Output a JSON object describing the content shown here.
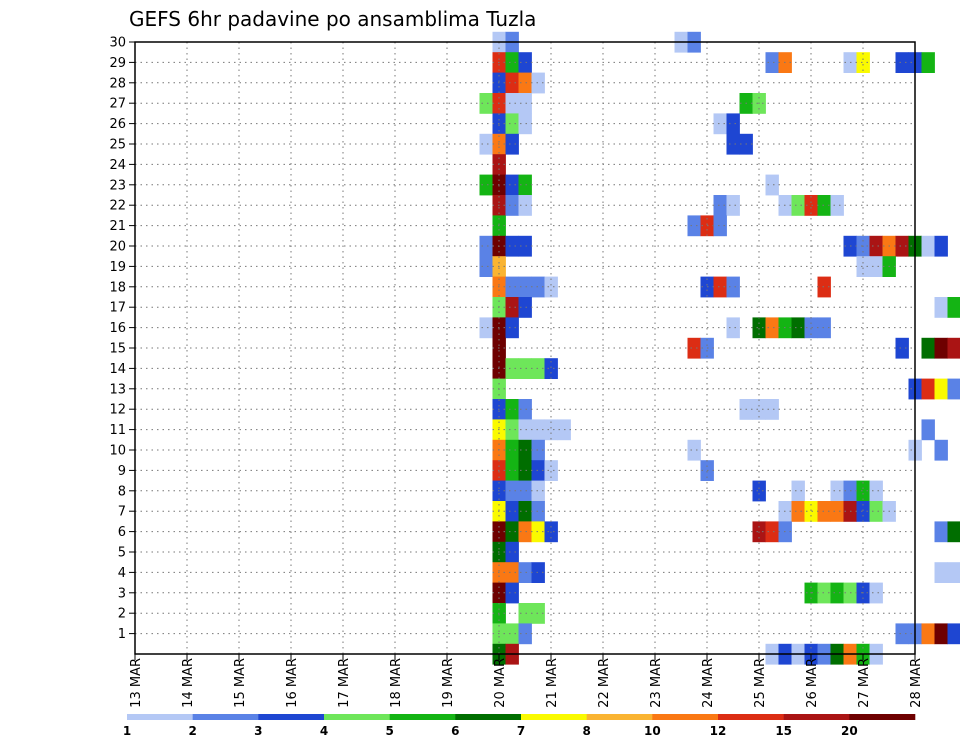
{
  "chart_data": {
    "type": "heatmap",
    "title": "GEFS 6hr padavine po ansamblima Tuzla",
    "xlabel": "",
    "ylabel": "",
    "x_tick_labels": [
      "13 MAR",
      "14 MAR",
      "15 MAR",
      "16 MAR",
      "17 MAR",
      "18 MAR",
      "19 MAR",
      "20 MAR",
      "21 MAR",
      "22 MAR",
      "23 MAR",
      "24 MAR",
      "25 MAR",
      "26 MAR",
      "27 MAR",
      "28 MAR"
    ],
    "y_tick_labels": [
      "1",
      "2",
      "3",
      "4",
      "5",
      "6",
      "7",
      "8",
      "9",
      "10",
      "11",
      "12",
      "13",
      "14",
      "15",
      "16",
      "17",
      "18",
      "19",
      "20",
      "21",
      "22",
      "23",
      "24",
      "25",
      "26",
      "27",
      "28",
      "29",
      "30"
    ],
    "x_range_steps": [
      0,
      60
    ],
    "y_range": [
      0,
      30
    ],
    "grid": true,
    "colorbar": {
      "labels": [
        "1",
        "2",
        "3",
        "4",
        "5",
        "6",
        "7",
        "8",
        "10",
        "12",
        "15",
        "20"
      ],
      "colors": [
        "#b4c8f5",
        "#5a82e6",
        "#1e46d2",
        "#6ee65a",
        "#14b414",
        "#006e00",
        "#fafa00",
        "#fab432",
        "#fa7814",
        "#dc2d14",
        "#aa1414",
        "#6e0000"
      ]
    },
    "note_units": "x = 6-hour forecast step index (0 = 13 MAR 00 UTC), y = ensemble member (0 = control), c = color bin index",
    "cells": [
      [
        28,
        30,
        0
      ],
      [
        29,
        30,
        1
      ],
      [
        42,
        30,
        0
      ],
      [
        43,
        30,
        1
      ],
      [
        28,
        29,
        9
      ],
      [
        29,
        29,
        4
      ],
      [
        30,
        29,
        2
      ],
      [
        49,
        29,
        1
      ],
      [
        50,
        29,
        8
      ],
      [
        55,
        29,
        0
      ],
      [
        56,
        29,
        6
      ],
      [
        59,
        29,
        2
      ],
      [
        60,
        29,
        2
      ],
      [
        61,
        29,
        4
      ],
      [
        68,
        29,
        0
      ],
      [
        70,
        29,
        0
      ],
      [
        28,
        28,
        2
      ],
      [
        29,
        28,
        9
      ],
      [
        30,
        28,
        8
      ],
      [
        31,
        28,
        0
      ],
      [
        74,
        28,
        0
      ],
      [
        27,
        27,
        3
      ],
      [
        28,
        27,
        9
      ],
      [
        29,
        27,
        0
      ],
      [
        30,
        27,
        0
      ],
      [
        47,
        27,
        4
      ],
      [
        48,
        27,
        3
      ],
      [
        72,
        27,
        0
      ],
      [
        73,
        27,
        0
      ],
      [
        74,
        27,
        0
      ],
      [
        28,
        26,
        2
      ],
      [
        29,
        26,
        3
      ],
      [
        30,
        26,
        0
      ],
      [
        45,
        26,
        0
      ],
      [
        46,
        26,
        2
      ],
      [
        69,
        26,
        1
      ],
      [
        72,
        26,
        1
      ],
      [
        73,
        26,
        2
      ],
      [
        27,
        25,
        0
      ],
      [
        28,
        25,
        8
      ],
      [
        29,
        25,
        2
      ],
      [
        46,
        25,
        2
      ],
      [
        47,
        25,
        2
      ],
      [
        64,
        25,
        0
      ],
      [
        28,
        24,
        10
      ],
      [
        27,
        23,
        4
      ],
      [
        28,
        23,
        11
      ],
      [
        29,
        23,
        2
      ],
      [
        30,
        23,
        4
      ],
      [
        49,
        23,
        0
      ],
      [
        71,
        23,
        8
      ],
      [
        72,
        23,
        0
      ],
      [
        28,
        22,
        10
      ],
      [
        29,
        22,
        1
      ],
      [
        30,
        22,
        0
      ],
      [
        45,
        22,
        1
      ],
      [
        46,
        22,
        0
      ],
      [
        50,
        22,
        0
      ],
      [
        51,
        22,
        3
      ],
      [
        52,
        22,
        9
      ],
      [
        53,
        22,
        4
      ],
      [
        54,
        22,
        0
      ],
      [
        28,
        21,
        4
      ],
      [
        43,
        21,
        1
      ],
      [
        44,
        21,
        9
      ],
      [
        45,
        21,
        1
      ],
      [
        27,
        20,
        1
      ],
      [
        28,
        20,
        11
      ],
      [
        29,
        20,
        2
      ],
      [
        30,
        20,
        2
      ],
      [
        55,
        20,
        2
      ],
      [
        56,
        20,
        1
      ],
      [
        57,
        20,
        10
      ],
      [
        58,
        20,
        8
      ],
      [
        59,
        20,
        10
      ],
      [
        60,
        20,
        5
      ],
      [
        61,
        20,
        0
      ],
      [
        62,
        20,
        2
      ],
      [
        27,
        19,
        1
      ],
      [
        28,
        19,
        7
      ],
      [
        56,
        19,
        0
      ],
      [
        57,
        19,
        0
      ],
      [
        58,
        19,
        4
      ],
      [
        68,
        19,
        0
      ],
      [
        28,
        18,
        8
      ],
      [
        29,
        18,
        1
      ],
      [
        30,
        18,
        1
      ],
      [
        31,
        18,
        1
      ],
      [
        32,
        18,
        0
      ],
      [
        44,
        18,
        2
      ],
      [
        45,
        18,
        9
      ],
      [
        46,
        18,
        1
      ],
      [
        53,
        18,
        9
      ],
      [
        68,
        18,
        4
      ],
      [
        69,
        18,
        2
      ],
      [
        28,
        17,
        3
      ],
      [
        29,
        17,
        10
      ],
      [
        30,
        17,
        2
      ],
      [
        62,
        17,
        0
      ],
      [
        63,
        17,
        4
      ],
      [
        71,
        17,
        2
      ],
      [
        72,
        17,
        0
      ],
      [
        74,
        17,
        0
      ],
      [
        27,
        16,
        0
      ],
      [
        28,
        16,
        11
      ],
      [
        29,
        16,
        2
      ],
      [
        46,
        16,
        0
      ],
      [
        48,
        16,
        5
      ],
      [
        49,
        16,
        8
      ],
      [
        50,
        16,
        4
      ],
      [
        51,
        16,
        5
      ],
      [
        52,
        16,
        1
      ],
      [
        53,
        16,
        1
      ],
      [
        28,
        15,
        11
      ],
      [
        43,
        15,
        9
      ],
      [
        44,
        15,
        1
      ],
      [
        59,
        15,
        2
      ],
      [
        61,
        15,
        5
      ],
      [
        62,
        15,
        11
      ],
      [
        63,
        15,
        10
      ],
      [
        64,
        15,
        6
      ],
      [
        65,
        15,
        4
      ],
      [
        66,
        15,
        5
      ],
      [
        67,
        15,
        3
      ],
      [
        68,
        15,
        1
      ],
      [
        28,
        14,
        11
      ],
      [
        29,
        14,
        3
      ],
      [
        30,
        14,
        3
      ],
      [
        31,
        14,
        3
      ],
      [
        32,
        14,
        2
      ],
      [
        28,
        13,
        3
      ],
      [
        60,
        13,
        2
      ],
      [
        61,
        13,
        9
      ],
      [
        62,
        13,
        6
      ],
      [
        63,
        13,
        1
      ],
      [
        28,
        12,
        2
      ],
      [
        29,
        12,
        4
      ],
      [
        30,
        12,
        1
      ],
      [
        47,
        12,
        0
      ],
      [
        48,
        12,
        0
      ],
      [
        49,
        12,
        0
      ],
      [
        28,
        11,
        6
      ],
      [
        29,
        11,
        3
      ],
      [
        30,
        11,
        0
      ],
      [
        31,
        11,
        0
      ],
      [
        32,
        11,
        0
      ],
      [
        33,
        11,
        0
      ],
      [
        61,
        11,
        1
      ],
      [
        69,
        11,
        0
      ],
      [
        28,
        10,
        8
      ],
      [
        29,
        10,
        4
      ],
      [
        30,
        10,
        5
      ],
      [
        31,
        10,
        1
      ],
      [
        43,
        10,
        0
      ],
      [
        60,
        10,
        0
      ],
      [
        62,
        10,
        1
      ],
      [
        74,
        10,
        8
      ],
      [
        28,
        9,
        9
      ],
      [
        29,
        9,
        4
      ],
      [
        30,
        9,
        5
      ],
      [
        31,
        9,
        2
      ],
      [
        32,
        9,
        0
      ],
      [
        44,
        9,
        1
      ],
      [
        28,
        8,
        2
      ],
      [
        29,
        8,
        1
      ],
      [
        30,
        8,
        1
      ],
      [
        31,
        8,
        0
      ],
      [
        48,
        8,
        2
      ],
      [
        51,
        8,
        0
      ],
      [
        54,
        8,
        0
      ],
      [
        55,
        8,
        1
      ],
      [
        56,
        8,
        4
      ],
      [
        57,
        8,
        0
      ],
      [
        28,
        7,
        6
      ],
      [
        29,
        7,
        2
      ],
      [
        30,
        7,
        5
      ],
      [
        31,
        7,
        1
      ],
      [
        50,
        7,
        0
      ],
      [
        51,
        7,
        8
      ],
      [
        52,
        7,
        6
      ],
      [
        53,
        7,
        8
      ],
      [
        54,
        7,
        8
      ],
      [
        55,
        7,
        10
      ],
      [
        56,
        7,
        2
      ],
      [
        57,
        7,
        3
      ],
      [
        58,
        7,
        0
      ],
      [
        67,
        7,
        0
      ],
      [
        69,
        7,
        2
      ],
      [
        28,
        6,
        11
      ],
      [
        29,
        6,
        5
      ],
      [
        30,
        6,
        8
      ],
      [
        31,
        6,
        6
      ],
      [
        32,
        6,
        2
      ],
      [
        48,
        6,
        10
      ],
      [
        49,
        6,
        9
      ],
      [
        50,
        6,
        1
      ],
      [
        62,
        6,
        1
      ],
      [
        63,
        6,
        5
      ],
      [
        64,
        6,
        2
      ],
      [
        68,
        6,
        0
      ],
      [
        69,
        6,
        2
      ],
      [
        70,
        6,
        1
      ],
      [
        28,
        5,
        5
      ],
      [
        29,
        5,
        2
      ],
      [
        70,
        5,
        6
      ],
      [
        71,
        5,
        1
      ],
      [
        72,
        5,
        0
      ],
      [
        28,
        4,
        8
      ],
      [
        29,
        4,
        8
      ],
      [
        30,
        4,
        1
      ],
      [
        31,
        4,
        2
      ],
      [
        62,
        4,
        0
      ],
      [
        63,
        4,
        0
      ],
      [
        64,
        4,
        4
      ],
      [
        65,
        4,
        5
      ],
      [
        66,
        4,
        2
      ],
      [
        28,
        3,
        11
      ],
      [
        29,
        3,
        2
      ],
      [
        52,
        3,
        4
      ],
      [
        53,
        3,
        3
      ],
      [
        54,
        3,
        4
      ],
      [
        55,
        3,
        3
      ],
      [
        56,
        3,
        2
      ],
      [
        57,
        3,
        0
      ],
      [
        28,
        2,
        4
      ],
      [
        30,
        2,
        3
      ],
      [
        31,
        2,
        3
      ],
      [
        69,
        2,
        2
      ],
      [
        72,
        2,
        2
      ],
      [
        28,
        1,
        3
      ],
      [
        29,
        1,
        3
      ],
      [
        30,
        1,
        1
      ],
      [
        59,
        1,
        1
      ],
      [
        60,
        1,
        1
      ],
      [
        61,
        1,
        8
      ],
      [
        62,
        1,
        11
      ],
      [
        63,
        1,
        2
      ],
      [
        28,
        0,
        5
      ],
      [
        29,
        0,
        10
      ],
      [
        49,
        0,
        0
      ],
      [
        50,
        0,
        2
      ],
      [
        51,
        0,
        0
      ],
      [
        52,
        0,
        2
      ],
      [
        53,
        0,
        1
      ],
      [
        54,
        0,
        5
      ],
      [
        55,
        0,
        8
      ],
      [
        56,
        0,
        4
      ],
      [
        57,
        0,
        0
      ],
      [
        73,
        0,
        8
      ],
      [
        74,
        0,
        2
      ]
    ]
  }
}
